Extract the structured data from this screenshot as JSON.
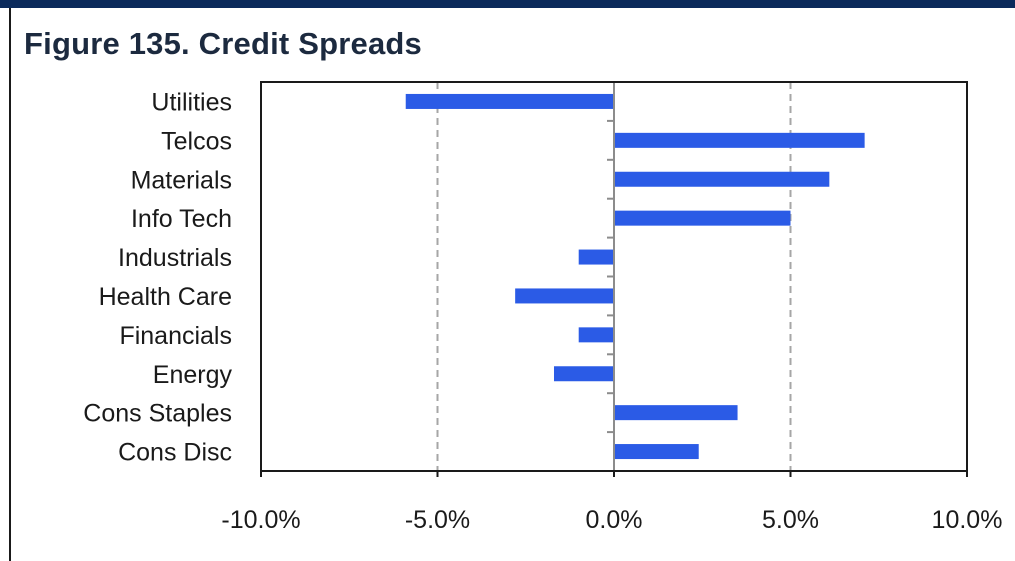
{
  "figure": {
    "title": "Figure 135. Credit Spreads"
  },
  "colors": {
    "bar": "#2b5be6",
    "frame": "#1a1a1a",
    "grid": "#a6a6a6",
    "axis": "#8c8c8c",
    "header": "#0b2a5b"
  },
  "chart_data": {
    "type": "bar",
    "orientation": "horizontal",
    "title": "",
    "xlabel": "",
    "ylabel": "",
    "categories": [
      "Utilities",
      "Telcos",
      "Materials",
      "Info Tech",
      "Industrials",
      "Health Care",
      "Financials",
      "Energy",
      "Cons Staples",
      "Cons Disc"
    ],
    "values": [
      -5.9,
      7.1,
      6.1,
      5.0,
      -1.0,
      -2.8,
      -1.0,
      -1.7,
      3.5,
      2.4
    ],
    "xlim": [
      -10,
      10
    ],
    "xticks": [
      -10,
      -5,
      0,
      5,
      10
    ],
    "xtick_labels": [
      "-10.0%",
      "-5.0%",
      "0.0%",
      "5.0%",
      "10.0%"
    ],
    "grid": "vertical dashed at ±5.0%",
    "legend": "none"
  }
}
